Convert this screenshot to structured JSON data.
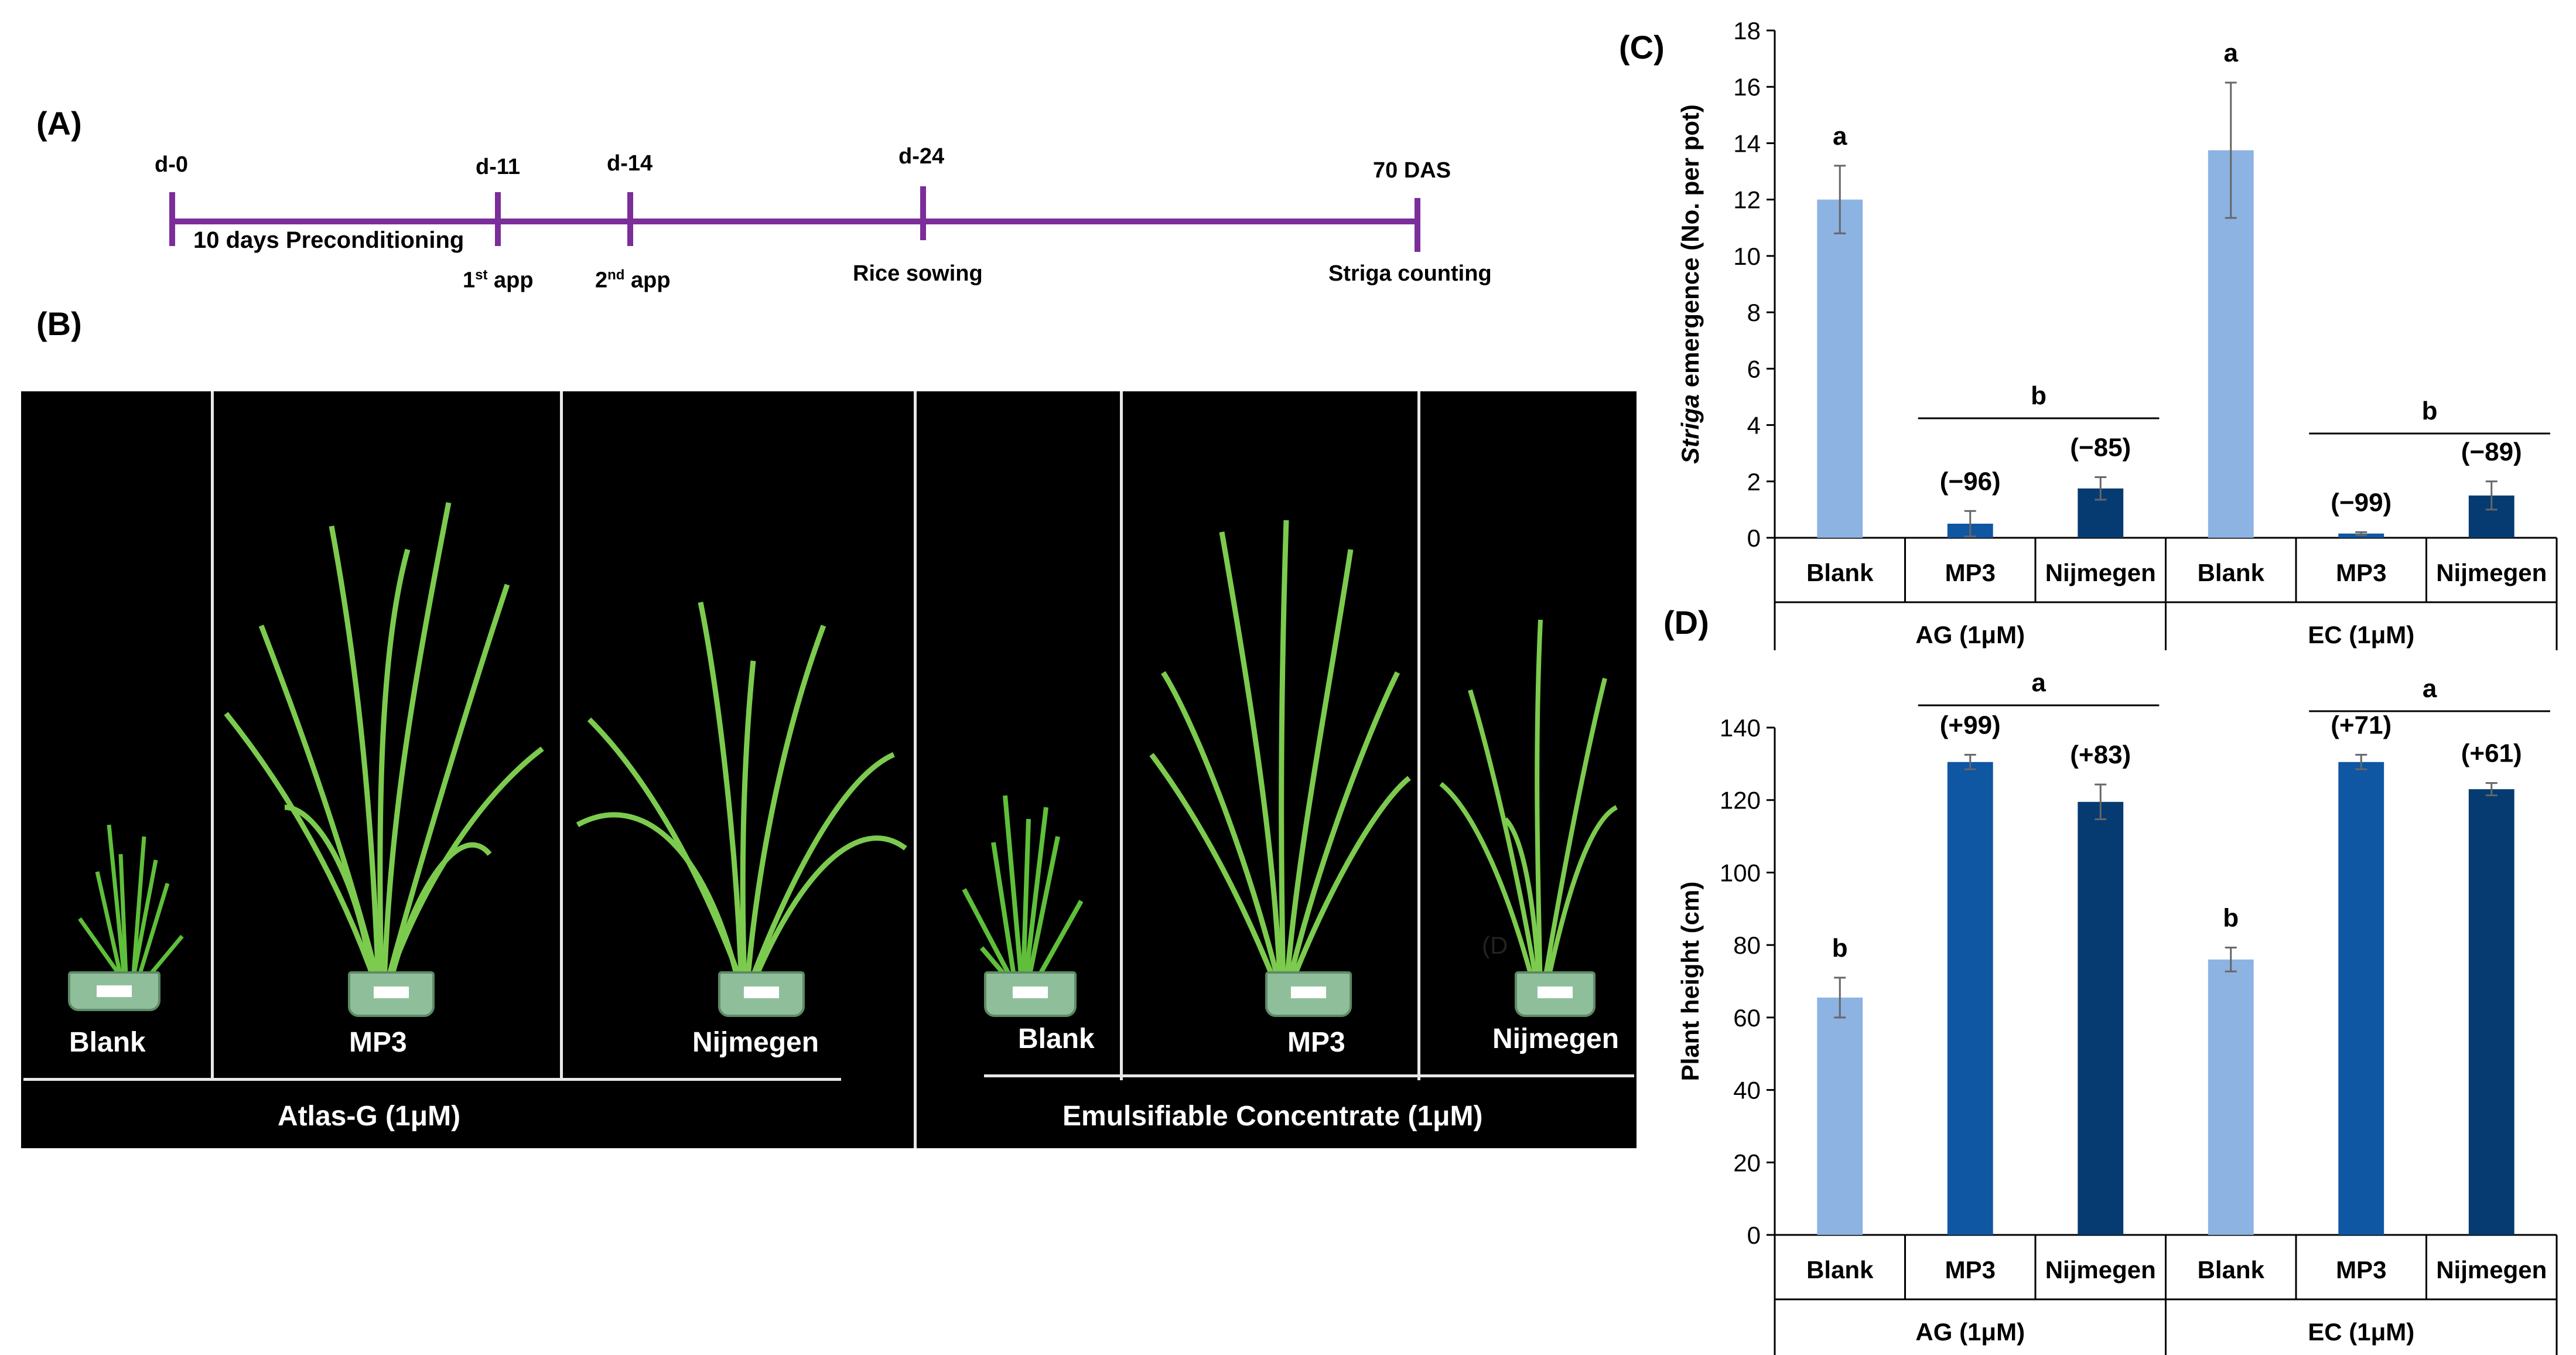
{
  "panel_labels": {
    "a": "(A)",
    "b": "(B)",
    "c": "(C)",
    "d": "(D)"
  },
  "timeline": {
    "days": [
      "d-0",
      "d-11",
      "d-14",
      "d-24",
      "70 DAS"
    ],
    "preconditioning": "10 days Preconditioning",
    "first_app_main": "1",
    "first_app_sup": "st",
    "first_app_rest": " app",
    "second_app_main": "2",
    "second_app_sup": "nd",
    "second_app_rest": " app",
    "rice_sowing": "Rice sowing",
    "striga_counting": "Striga counting",
    "color": "#7b2d9a"
  },
  "photo": {
    "plant_labels": [
      "Blank",
      "MP3",
      "Nijmegen",
      "Blank",
      "MP3",
      "Nijmegen"
    ],
    "group_labels": [
      "Atlas-G (1μM)",
      "Emulsifiable Concentrate (1μM)"
    ],
    "stray_text": "(D"
  },
  "chart_data": [
    {
      "type": "bar",
      "panel": "(C)",
      "ylabel_italic": "Striga",
      "ylabel_rest": " emergence (No. per pot)",
      "ylim": [
        0,
        18
      ],
      "yticks": [
        0,
        2,
        4,
        6,
        8,
        10,
        12,
        14,
        16,
        18
      ],
      "categories": [
        "Blank",
        "MP3",
        "Nijmegen",
        "Blank",
        "MP3",
        "Nijmegen"
      ],
      "groups": [
        "AG (1μM)",
        "EC (1μM)"
      ],
      "values": [
        12.0,
        0.5,
        1.75,
        13.75,
        0.15,
        1.5
      ],
      "errors": [
        1.2,
        0.45,
        0.4,
        2.4,
        0.05,
        0.5
      ],
      "colors": [
        "#8db3e2",
        "#0f56a3",
        "#063b71",
        "#8db3e2",
        "#0f56a3",
        "#063b71"
      ],
      "bar_labels": [
        "a",
        "(−96)",
        "(−85)",
        "a",
        "(−99)",
        "(−89)"
      ],
      "group_letters": [
        "b",
        "b"
      ]
    },
    {
      "type": "bar",
      "panel": "(D)",
      "ylabel": "Plant height (cm)",
      "ylim": [
        0,
        140
      ],
      "yticks": [
        0,
        20,
        40,
        60,
        80,
        100,
        120,
        140
      ],
      "categories": [
        "Blank",
        "MP3",
        "Nijmegen",
        "Blank",
        "MP3",
        "Nijmegen"
      ],
      "groups": [
        "AG (1μM)",
        "EC (1μM)"
      ],
      "values": [
        65.5,
        130.5,
        119.5,
        76,
        130.5,
        123
      ],
      "errors": [
        5.5,
        2,
        4.8,
        3.3,
        2,
        1.7
      ],
      "colors": [
        "#8db3e2",
        "#0f56a3",
        "#063b71",
        "#8db3e2",
        "#0f56a3",
        "#063b71"
      ],
      "bar_labels": [
        "b",
        "(+99)",
        "(+83)",
        "b",
        "(+71)",
        "(+61)"
      ],
      "group_letters": [
        "a",
        "a"
      ]
    }
  ]
}
